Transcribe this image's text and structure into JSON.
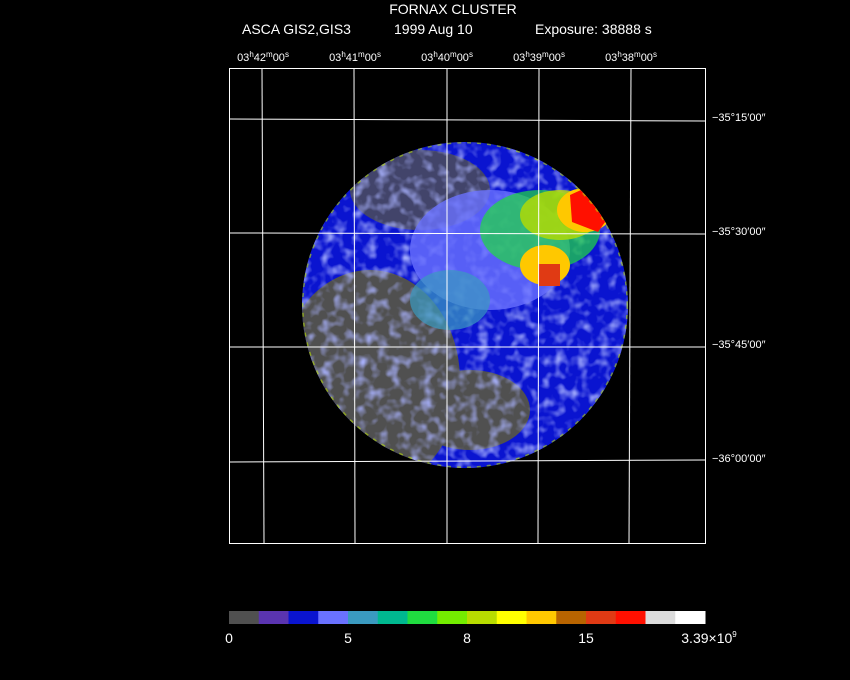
{
  "header": {
    "title": "FORNAX CLUSTER",
    "instrument": "ASCA GIS2,GIS3",
    "date": "1999 Aug 10",
    "exposure": "Exposure: 38888 s"
  },
  "ra_labels": [
    [
      "03",
      "h",
      "42",
      "m",
      "00",
      "s"
    ],
    [
      "03",
      "h",
      "41",
      "m",
      "00",
      "s"
    ],
    [
      "03",
      "h",
      "40",
      "m",
      "00",
      "s"
    ],
    [
      "03",
      "h",
      "39",
      "m",
      "00",
      "s"
    ],
    [
      "03",
      "h",
      "38",
      "m",
      "00",
      "s"
    ]
  ],
  "dec_labels": [
    "−35°15′00″",
    "−35°30′00″",
    "−35°45′00″",
    "−36°00′00″"
  ],
  "colorbar": {
    "colors": [
      "#505050",
      "#5a34b0",
      "#0a14d0",
      "#6a72ff",
      "#3a9ac0",
      "#00b890",
      "#20dc40",
      "#74ec00",
      "#b8dc00",
      "#ffff00",
      "#ffc800",
      "#b86400",
      "#e03a14",
      "#ff1000",
      "#dcdcdc",
      "#ffffff"
    ],
    "labels": [
      "0",
      "5",
      "8",
      "15",
      {
        "mantissa": "3.39×10",
        "exponent": "9"
      }
    ]
  }
}
